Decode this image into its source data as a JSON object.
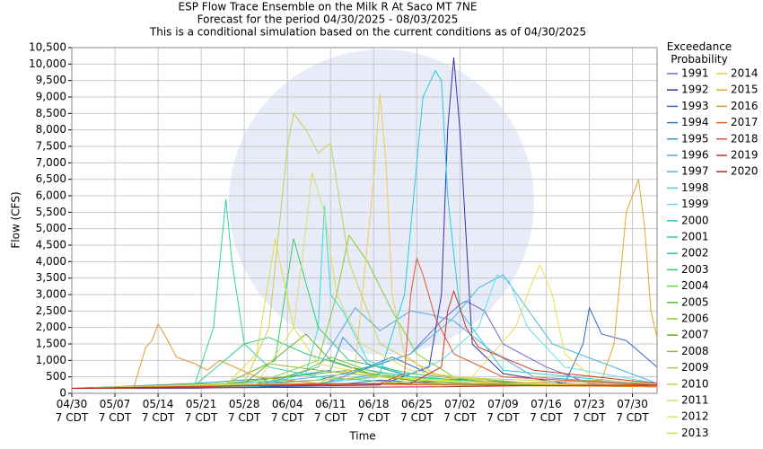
{
  "chart_data": {
    "type": "line",
    "title": "ESP Flow Trace Ensemble on the Milk R At Saco MT 7NE",
    "subtitle": "Forecast for the period 04/30/2025 - 08/03/2025",
    "note": "This is a conditional simulation based on the current conditions as of 04/30/2025",
    "x_label": "Time",
    "y_label": "Flow (CFS)",
    "legend_title": "Exceedance\nProbability",
    "grid": true,
    "xlim": [
      0,
      95
    ],
    "ylim": [
      0,
      10500
    ],
    "xticks": [
      {
        "value": 0,
        "label": "04/30\n7 CDT"
      },
      {
        "value": 7,
        "label": "05/07\n7 CDT"
      },
      {
        "value": 14,
        "label": "05/14\n7 CDT"
      },
      {
        "value": 21,
        "label": "05/21\n7 CDT"
      },
      {
        "value": 28,
        "label": "05/28\n7 CDT"
      },
      {
        "value": 35,
        "label": "06/04\n7 CDT"
      },
      {
        "value": 42,
        "label": "06/11\n7 CDT"
      },
      {
        "value": 49,
        "label": "06/18\n7 CDT"
      },
      {
        "value": 56,
        "label": "06/25\n7 CDT"
      },
      {
        "value": 63,
        "label": "07/02\n7 CDT"
      },
      {
        "value": 70,
        "label": "07/09\n7 CDT"
      },
      {
        "value": 77,
        "label": "07/16\n7 CDT"
      },
      {
        "value": 84,
        "label": "07/23\n7 CDT"
      },
      {
        "value": 91,
        "label": "07/30\n7 CDT"
      }
    ],
    "yticks": [
      0,
      500,
      {
        "value": 1000,
        "label": "1,000"
      },
      {
        "value": 1500,
        "label": "1,500"
      },
      {
        "value": 2000,
        "label": "2,000"
      },
      {
        "value": 2500,
        "label": "2,500"
      },
      {
        "value": 3000,
        "label": "3,000"
      },
      {
        "value": 3500,
        "label": "3,500"
      },
      {
        "value": 4000,
        "label": "4,000"
      },
      {
        "value": 4500,
        "label": "4,500"
      },
      {
        "value": 5000,
        "label": "5,000"
      },
      {
        "value": 5500,
        "label": "5,500"
      },
      {
        "value": 6000,
        "label": "6,000"
      },
      {
        "value": 6500,
        "label": "6,500"
      },
      {
        "value": 7000,
        "label": "7,000"
      },
      {
        "value": 7500,
        "label": "7,500"
      },
      {
        "value": 8000,
        "label": "8,000"
      },
      {
        "value": 8500,
        "label": "8,500"
      },
      {
        "value": 9000,
        "label": "9,000"
      },
      {
        "value": 9500,
        "label": "9,500"
      },
      {
        "value": 10000,
        "label": "10,000"
      },
      {
        "value": 10500,
        "label": "10,500"
      }
    ],
    "series": [
      {
        "name": "1991",
        "color": "#6a6ad0",
        "x": [
          0,
          20,
          40,
          55,
          60,
          63,
          64,
          67,
          70,
          77,
          84,
          95
        ],
        "values": [
          150,
          150,
          250,
          1200,
          2200,
          2700,
          2800,
          2500,
          1500,
          800,
          300,
          200
        ]
      },
      {
        "name": "1992",
        "color": "#3333aa",
        "x": [
          0,
          30,
          50,
          58,
          60,
          61,
          62,
          63,
          65,
          70,
          80,
          95
        ],
        "values": [
          150,
          200,
          250,
          800,
          3000,
          8000,
          10200,
          8000,
          1500,
          600,
          300,
          200
        ]
      },
      {
        "name": "1993",
        "color": "#3366cc",
        "x": [
          0,
          30,
          45,
          50,
          55,
          60,
          70,
          80,
          83,
          84,
          86,
          90,
          95
        ],
        "values": [
          150,
          200,
          300,
          400,
          350,
          300,
          250,
          300,
          1500,
          2600,
          1800,
          1600,
          800
        ]
      },
      {
        "name": "1994",
        "color": "#3377bb",
        "x": [
          0,
          25,
          40,
          48,
          52,
          58,
          65,
          75,
          85,
          95
        ],
        "values": [
          150,
          250,
          400,
          800,
          1100,
          600,
          400,
          300,
          250,
          220
        ]
      },
      {
        "name": "1995",
        "color": "#3399cc",
        "x": [
          0,
          20,
          35,
          42,
          44,
          48,
          55,
          65,
          75,
          95
        ],
        "values": [
          150,
          300,
          500,
          700,
          1700,
          900,
          500,
          400,
          300,
          250
        ]
      },
      {
        "name": "1996",
        "color": "#55aadd",
        "x": [
          0,
          30,
          40,
          46,
          50,
          55,
          58,
          62,
          68,
          75,
          95
        ],
        "values": [
          150,
          200,
          800,
          2600,
          1900,
          2500,
          2400,
          2200,
          1300,
          500,
          250
        ]
      },
      {
        "name": "1997",
        "color": "#44bbdd",
        "x": [
          0,
          20,
          35,
          45,
          55,
          62,
          66,
          70,
          78,
          95
        ],
        "values": [
          150,
          250,
          400,
          600,
          1200,
          2300,
          3200,
          3600,
          1500,
          300
        ]
      },
      {
        "name": "1998",
        "color": "#33dddd",
        "x": [
          0,
          30,
          38,
          40,
          41,
          42,
          44,
          48,
          55,
          70,
          95
        ],
        "values": [
          150,
          200,
          600,
          2000,
          5700,
          3000,
          2500,
          1000,
          500,
          300,
          200
        ]
      },
      {
        "name": "1999",
        "color": "#66ddee",
        "x": [
          0,
          40,
          55,
          60,
          66,
          69,
          71,
          74,
          80,
          95
        ],
        "values": [
          150,
          300,
          600,
          1000,
          2000,
          3600,
          3400,
          2000,
          800,
          300
        ]
      },
      {
        "name": "2000",
        "color": "#22ccdd",
        "x": [
          0,
          40,
          50,
          54,
          57,
          59,
          60,
          61,
          63,
          70,
          95
        ],
        "values": [
          150,
          300,
          600,
          3000,
          9000,
          9800,
          9500,
          6000,
          2500,
          700,
          250
        ]
      },
      {
        "name": "2001",
        "color": "#33ccaa",
        "x": [
          0,
          14,
          20,
          23,
          25,
          26,
          28,
          32,
          40,
          55,
          95
        ],
        "values": [
          150,
          200,
          300,
          2000,
          5900,
          4000,
          1500,
          800,
          500,
          300,
          200
        ]
      },
      {
        "name": "2002",
        "color": "#33cc88",
        "x": [
          0,
          20,
          28,
          32,
          38,
          45,
          55,
          70,
          95
        ],
        "values": [
          150,
          250,
          1500,
          1700,
          1200,
          800,
          500,
          300,
          200
        ]
      },
      {
        "name": "2003",
        "color": "#33cc66",
        "x": [
          0,
          25,
          33,
          36,
          40,
          45,
          55,
          70,
          95
        ],
        "values": [
          150,
          300,
          1000,
          4700,
          2000,
          1000,
          600,
          300,
          200
        ]
      },
      {
        "name": "2004",
        "color": "#66cc44",
        "x": [
          0,
          30,
          38,
          42,
          48,
          55,
          65,
          80,
          95
        ],
        "values": [
          150,
          250,
          700,
          1100,
          700,
          400,
          300,
          250,
          200
        ]
      },
      {
        "name": "2005",
        "color": "#55bb33",
        "x": [
          0,
          25,
          35,
          45,
          55,
          65,
          80,
          95
        ],
        "values": [
          150,
          300,
          500,
          700,
          400,
          300,
          250,
          200
        ]
      },
      {
        "name": "2006",
        "color": "#88cc33",
        "x": [
          0,
          30,
          40,
          43,
          45,
          48,
          52,
          56,
          62,
          75,
          95
        ],
        "values": [
          150,
          300,
          1000,
          3000,
          4800,
          4000,
          2500,
          1200,
          500,
          300,
          200
        ]
      },
      {
        "name": "2007",
        "color": "#66aa22",
        "x": [
          0,
          28,
          34,
          38,
          42,
          50,
          60,
          75,
          95
        ],
        "values": [
          150,
          300,
          1200,
          1800,
          1000,
          500,
          300,
          250,
          200
        ]
      },
      {
        "name": "2008",
        "color": "#99bb33",
        "x": [
          0,
          25,
          32,
          40,
          50,
          60,
          80,
          95
        ],
        "values": [
          150,
          300,
          900,
          700,
          500,
          400,
          250,
          200
        ]
      },
      {
        "name": "2009",
        "color": "#aacc44",
        "x": [
          0,
          30,
          40,
          50,
          60,
          70,
          85,
          95
        ],
        "values": [
          150,
          250,
          400,
          500,
          400,
          300,
          250,
          200
        ]
      },
      {
        "name": "2010",
        "color": "#cccc55",
        "x": [
          0,
          28,
          32,
          35,
          36,
          38,
          40,
          42,
          45,
          50,
          60,
          95
        ],
        "values": [
          150,
          300,
          2000,
          7500,
          8500,
          8000,
          7300,
          7600,
          4000,
          1500,
          500,
          250
        ]
      },
      {
        "name": "2011",
        "color": "#dddd66",
        "x": [
          0,
          30,
          36,
          38,
          39,
          41,
          43,
          47,
          55,
          70,
          95
        ],
        "values": [
          150,
          300,
          2000,
          5000,
          6700,
          5500,
          3000,
          1500,
          700,
          300,
          250
        ]
      },
      {
        "name": "2012",
        "color": "#eedd55",
        "x": [
          0,
          50,
          65,
          72,
          75,
          76,
          78,
          80,
          85,
          95
        ],
        "values": [
          150,
          300,
          500,
          2000,
          3500,
          3900,
          3000,
          1200,
          400,
          300
        ]
      },
      {
        "name": "2013",
        "color": "#dddd44",
        "x": [
          0,
          25,
          30,
          32,
          33,
          34,
          36,
          40,
          50,
          70,
          95
        ],
        "values": [
          150,
          250,
          1200,
          3500,
          4700,
          3800,
          2000,
          900,
          500,
          300,
          200
        ]
      },
      {
        "name": "2014",
        "color": "#eecc55",
        "x": [
          0,
          40,
          46,
          49,
          50,
          51,
          52,
          54,
          58,
          70,
          95
        ],
        "values": [
          150,
          300,
          800,
          6500,
          9100,
          7000,
          3000,
          1200,
          600,
          300,
          250
        ]
      },
      {
        "name": "2015",
        "color": "#ddaa33",
        "x": [
          0,
          50,
          70,
          86,
          88,
          90,
          92,
          93,
          94,
          95
        ],
        "values": [
          150,
          300,
          300,
          400,
          1500,
          5500,
          6500,
          5000,
          2500,
          1700
        ]
      },
      {
        "name": "2016",
        "color": "#dd9933",
        "x": [
          0,
          10,
          12,
          13,
          14,
          15,
          17,
          20,
          22,
          24,
          30,
          40,
          60,
          95
        ],
        "values": [
          150,
          150,
          1400,
          1600,
          2100,
          1800,
          1100,
          900,
          700,
          1000,
          500,
          300,
          250,
          200
        ]
      },
      {
        "name": "2017",
        "color": "#dd6622",
        "x": [
          0,
          20,
          30,
          40,
          50,
          60,
          70,
          80,
          95
        ],
        "values": [
          150,
          200,
          250,
          300,
          280,
          260,
          240,
          230,
          220
        ]
      },
      {
        "name": "2018",
        "color": "#dd5533",
        "x": [
          0,
          50,
          54,
          55,
          56,
          57,
          59,
          62,
          70,
          95
        ],
        "values": [
          150,
          300,
          600,
          3000,
          4100,
          3600,
          2300,
          1200,
          500,
          250
        ]
      },
      {
        "name": "2019",
        "color": "#cc3322",
        "x": [
          0,
          55,
          60,
          61,
          62,
          63,
          64,
          66,
          75,
          95
        ],
        "values": [
          150,
          300,
          800,
          2500,
          3100,
          2600,
          2000,
          1400,
          700,
          300
        ]
      },
      {
        "name": "2020",
        "color": "#bb2222",
        "x": [
          0,
          20,
          40,
          60,
          70,
          80,
          95
        ],
        "values": [
          150,
          170,
          180,
          200,
          220,
          240,
          250
        ]
      }
    ]
  }
}
